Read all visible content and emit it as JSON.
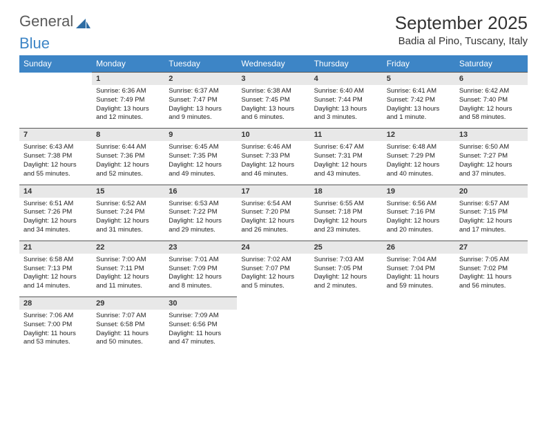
{
  "logo": {
    "word1": "General",
    "word2": "Blue"
  },
  "title": {
    "month": "September 2025",
    "location": "Badia al Pino, Tuscany, Italy"
  },
  "colors": {
    "header_bg": "#3d85c6",
    "header_fg": "#ffffff",
    "daynum_bg": "#e8e8e8",
    "daynum_border": "#555555",
    "text": "#222222",
    "title_text": "#333333",
    "logo_gray": "#5a5a5a",
    "logo_blue": "#3d85c6",
    "page_bg": "#ffffff"
  },
  "typography": {
    "title_fontsize_pt": 20,
    "location_fontsize_pt": 11,
    "dow_fontsize_pt": 9,
    "daynum_fontsize_pt": 8,
    "body_fontsize_pt": 7
  },
  "days_of_week": [
    "Sunday",
    "Monday",
    "Tuesday",
    "Wednesday",
    "Thursday",
    "Friday",
    "Saturday"
  ],
  "weeks": [
    [
      null,
      {
        "n": "1",
        "sr": "Sunrise: 6:36 AM",
        "ss": "Sunset: 7:49 PM",
        "dl": "Daylight: 13 hours and 12 minutes."
      },
      {
        "n": "2",
        "sr": "Sunrise: 6:37 AM",
        "ss": "Sunset: 7:47 PM",
        "dl": "Daylight: 13 hours and 9 minutes."
      },
      {
        "n": "3",
        "sr": "Sunrise: 6:38 AM",
        "ss": "Sunset: 7:45 PM",
        "dl": "Daylight: 13 hours and 6 minutes."
      },
      {
        "n": "4",
        "sr": "Sunrise: 6:40 AM",
        "ss": "Sunset: 7:44 PM",
        "dl": "Daylight: 13 hours and 3 minutes."
      },
      {
        "n": "5",
        "sr": "Sunrise: 6:41 AM",
        "ss": "Sunset: 7:42 PM",
        "dl": "Daylight: 13 hours and 1 minute."
      },
      {
        "n": "6",
        "sr": "Sunrise: 6:42 AM",
        "ss": "Sunset: 7:40 PM",
        "dl": "Daylight: 12 hours and 58 minutes."
      }
    ],
    [
      {
        "n": "7",
        "sr": "Sunrise: 6:43 AM",
        "ss": "Sunset: 7:38 PM",
        "dl": "Daylight: 12 hours and 55 minutes."
      },
      {
        "n": "8",
        "sr": "Sunrise: 6:44 AM",
        "ss": "Sunset: 7:36 PM",
        "dl": "Daylight: 12 hours and 52 minutes."
      },
      {
        "n": "9",
        "sr": "Sunrise: 6:45 AM",
        "ss": "Sunset: 7:35 PM",
        "dl": "Daylight: 12 hours and 49 minutes."
      },
      {
        "n": "10",
        "sr": "Sunrise: 6:46 AM",
        "ss": "Sunset: 7:33 PM",
        "dl": "Daylight: 12 hours and 46 minutes."
      },
      {
        "n": "11",
        "sr": "Sunrise: 6:47 AM",
        "ss": "Sunset: 7:31 PM",
        "dl": "Daylight: 12 hours and 43 minutes."
      },
      {
        "n": "12",
        "sr": "Sunrise: 6:48 AM",
        "ss": "Sunset: 7:29 PM",
        "dl": "Daylight: 12 hours and 40 minutes."
      },
      {
        "n": "13",
        "sr": "Sunrise: 6:50 AM",
        "ss": "Sunset: 7:27 PM",
        "dl": "Daylight: 12 hours and 37 minutes."
      }
    ],
    [
      {
        "n": "14",
        "sr": "Sunrise: 6:51 AM",
        "ss": "Sunset: 7:26 PM",
        "dl": "Daylight: 12 hours and 34 minutes."
      },
      {
        "n": "15",
        "sr": "Sunrise: 6:52 AM",
        "ss": "Sunset: 7:24 PM",
        "dl": "Daylight: 12 hours and 31 minutes."
      },
      {
        "n": "16",
        "sr": "Sunrise: 6:53 AM",
        "ss": "Sunset: 7:22 PM",
        "dl": "Daylight: 12 hours and 29 minutes."
      },
      {
        "n": "17",
        "sr": "Sunrise: 6:54 AM",
        "ss": "Sunset: 7:20 PM",
        "dl": "Daylight: 12 hours and 26 minutes."
      },
      {
        "n": "18",
        "sr": "Sunrise: 6:55 AM",
        "ss": "Sunset: 7:18 PM",
        "dl": "Daylight: 12 hours and 23 minutes."
      },
      {
        "n": "19",
        "sr": "Sunrise: 6:56 AM",
        "ss": "Sunset: 7:16 PM",
        "dl": "Daylight: 12 hours and 20 minutes."
      },
      {
        "n": "20",
        "sr": "Sunrise: 6:57 AM",
        "ss": "Sunset: 7:15 PM",
        "dl": "Daylight: 12 hours and 17 minutes."
      }
    ],
    [
      {
        "n": "21",
        "sr": "Sunrise: 6:58 AM",
        "ss": "Sunset: 7:13 PM",
        "dl": "Daylight: 12 hours and 14 minutes."
      },
      {
        "n": "22",
        "sr": "Sunrise: 7:00 AM",
        "ss": "Sunset: 7:11 PM",
        "dl": "Daylight: 12 hours and 11 minutes."
      },
      {
        "n": "23",
        "sr": "Sunrise: 7:01 AM",
        "ss": "Sunset: 7:09 PM",
        "dl": "Daylight: 12 hours and 8 minutes."
      },
      {
        "n": "24",
        "sr": "Sunrise: 7:02 AM",
        "ss": "Sunset: 7:07 PM",
        "dl": "Daylight: 12 hours and 5 minutes."
      },
      {
        "n": "25",
        "sr": "Sunrise: 7:03 AM",
        "ss": "Sunset: 7:05 PM",
        "dl": "Daylight: 12 hours and 2 minutes."
      },
      {
        "n": "26",
        "sr": "Sunrise: 7:04 AM",
        "ss": "Sunset: 7:04 PM",
        "dl": "Daylight: 11 hours and 59 minutes."
      },
      {
        "n": "27",
        "sr": "Sunrise: 7:05 AM",
        "ss": "Sunset: 7:02 PM",
        "dl": "Daylight: 11 hours and 56 minutes."
      }
    ],
    [
      {
        "n": "28",
        "sr": "Sunrise: 7:06 AM",
        "ss": "Sunset: 7:00 PM",
        "dl": "Daylight: 11 hours and 53 minutes."
      },
      {
        "n": "29",
        "sr": "Sunrise: 7:07 AM",
        "ss": "Sunset: 6:58 PM",
        "dl": "Daylight: 11 hours and 50 minutes."
      },
      {
        "n": "30",
        "sr": "Sunrise: 7:09 AM",
        "ss": "Sunset: 6:56 PM",
        "dl": "Daylight: 11 hours and 47 minutes."
      },
      null,
      null,
      null,
      null
    ]
  ]
}
